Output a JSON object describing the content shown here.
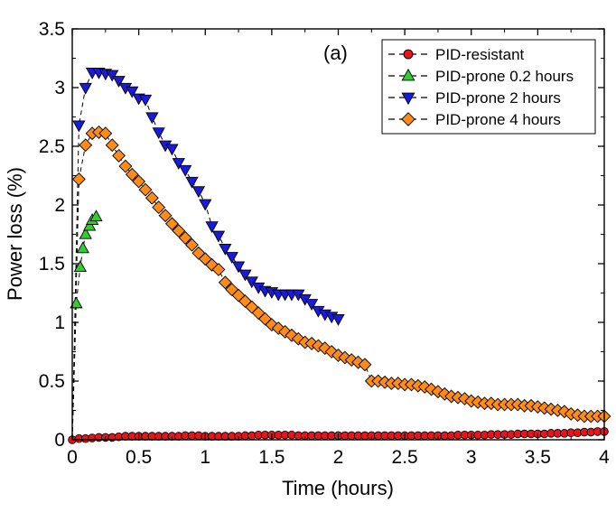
{
  "chart_data": {
    "type": "scatter",
    "panel_label": "(a)",
    "xlabel": "Time (hours)",
    "ylabel": "Power loss (%)",
    "xlim": [
      0,
      4
    ],
    "ylim": [
      0,
      3.5
    ],
    "xticks": [
      "0",
      "0.5",
      "1",
      "1.5",
      "2",
      "2.5",
      "3",
      "3.5",
      "4"
    ],
    "yticks": [
      "0",
      "0.5",
      "1",
      "1.5",
      "2",
      "2.5",
      "3",
      "3.5"
    ],
    "grid": false,
    "legend_position": "top-right",
    "series": [
      {
        "name": "PID-resistant",
        "marker": "circle",
        "color": "#e8141c",
        "x": [
          0,
          0.05,
          0.1,
          0.15,
          0.2,
          0.25,
          0.3,
          0.35,
          0.4,
          0.45,
          0.5,
          0.55,
          0.6,
          0.65,
          0.7,
          0.75,
          0.8,
          0.85,
          0.9,
          0.95,
          1.0,
          1.05,
          1.1,
          1.15,
          1.2,
          1.25,
          1.3,
          1.35,
          1.4,
          1.45,
          1.5,
          1.55,
          1.6,
          1.65,
          1.7,
          1.75,
          1.8,
          1.85,
          1.9,
          1.95,
          2.0,
          2.05,
          2.1,
          2.15,
          2.2,
          2.25,
          2.3,
          2.35,
          2.4,
          2.45,
          2.5,
          2.55,
          2.6,
          2.65,
          2.7,
          2.75,
          2.8,
          2.85,
          2.9,
          2.95,
          3.0,
          3.05,
          3.1,
          3.15,
          3.2,
          3.25,
          3.3,
          3.35,
          3.4,
          3.45,
          3.5,
          3.55,
          3.6,
          3.65,
          3.7,
          3.75,
          3.8,
          3.85,
          3.9,
          3.95,
          4.0
        ],
        "y": [
          0,
          0.01,
          0.01,
          0.015,
          0.02,
          0.02,
          0.02,
          0.025,
          0.03,
          0.03,
          0.03,
          0.03,
          0.03,
          0.03,
          0.03,
          0.03,
          0.03,
          0.035,
          0.035,
          0.035,
          0.03,
          0.03,
          0.03,
          0.03,
          0.03,
          0.03,
          0.035,
          0.035,
          0.04,
          0.04,
          0.04,
          0.04,
          0.04,
          0.04,
          0.035,
          0.035,
          0.035,
          0.035,
          0.035,
          0.035,
          0.035,
          0.035,
          0.035,
          0.035,
          0.035,
          0.035,
          0.035,
          0.035,
          0.035,
          0.035,
          0.035,
          0.035,
          0.035,
          0.035,
          0.035,
          0.035,
          0.035,
          0.035,
          0.04,
          0.04,
          0.04,
          0.04,
          0.04,
          0.045,
          0.045,
          0.045,
          0.045,
          0.05,
          0.05,
          0.05,
          0.05,
          0.05,
          0.055,
          0.055,
          0.055,
          0.06,
          0.06,
          0.065,
          0.065,
          0.07,
          0.07
        ]
      },
      {
        "name": "PID-prone 0.2 hours",
        "marker": "triangle-up",
        "color": "#33cc33",
        "x": [
          0.03,
          0.06,
          0.08,
          0.1,
          0.13,
          0.15,
          0.18
        ],
        "y": [
          1.16,
          1.47,
          1.63,
          1.75,
          1.82,
          1.87,
          1.9
        ]
      },
      {
        "name": "PID-prone 2 hours",
        "marker": "triangle-down",
        "color": "#1a1adb",
        "x": [
          0.05,
          0.1,
          0.15,
          0.2,
          0.25,
          0.3,
          0.35,
          0.4,
          0.45,
          0.5,
          0.55,
          0.6,
          0.65,
          0.7,
          0.75,
          0.8,
          0.85,
          0.9,
          0.95,
          1.0,
          1.05,
          1.1,
          1.15,
          1.2,
          1.25,
          1.3,
          1.35,
          1.4,
          1.45,
          1.5,
          1.55,
          1.6,
          1.65,
          1.7,
          1.75,
          1.8,
          1.85,
          1.9,
          1.95,
          2.0
        ],
        "y": [
          2.68,
          3.0,
          3.13,
          3.13,
          3.12,
          3.11,
          3.06,
          3.0,
          2.97,
          2.91,
          2.9,
          2.75,
          2.62,
          2.51,
          2.48,
          2.36,
          2.3,
          2.2,
          2.12,
          2.01,
          1.82,
          1.74,
          1.63,
          1.56,
          1.48,
          1.41,
          1.35,
          1.3,
          1.27,
          1.26,
          1.24,
          1.24,
          1.24,
          1.24,
          1.2,
          1.16,
          1.1,
          1.07,
          1.05,
          1.03
        ]
      },
      {
        "name": "PID-prone 4 hours",
        "marker": "diamond",
        "color": "#ff8c1a",
        "x": [
          0.05,
          0.1,
          0.15,
          0.2,
          0.25,
          0.3,
          0.35,
          0.4,
          0.45,
          0.5,
          0.55,
          0.6,
          0.65,
          0.7,
          0.75,
          0.8,
          0.85,
          0.9,
          0.95,
          1.0,
          1.05,
          1.1,
          1.15,
          1.2,
          1.25,
          1.3,
          1.35,
          1.4,
          1.45,
          1.5,
          1.55,
          1.6,
          1.65,
          1.7,
          1.75,
          1.8,
          1.85,
          1.9,
          1.95,
          2.0,
          2.05,
          2.1,
          2.15,
          2.2,
          2.25,
          2.3,
          2.35,
          2.4,
          2.45,
          2.5,
          2.55,
          2.6,
          2.65,
          2.7,
          2.75,
          2.8,
          2.85,
          2.9,
          2.95,
          3.0,
          3.05,
          3.1,
          3.15,
          3.2,
          3.25,
          3.3,
          3.35,
          3.4,
          3.45,
          3.5,
          3.55,
          3.6,
          3.65,
          3.7,
          3.75,
          3.8,
          3.85,
          3.9,
          3.95,
          4.0
        ],
        "y": [
          2.22,
          2.51,
          2.61,
          2.62,
          2.61,
          2.51,
          2.42,
          2.33,
          2.26,
          2.2,
          2.13,
          2.06,
          1.98,
          1.91,
          1.84,
          1.78,
          1.72,
          1.66,
          1.59,
          1.54,
          1.49,
          1.45,
          1.34,
          1.28,
          1.23,
          1.18,
          1.13,
          1.08,
          1.03,
          0.98,
          0.95,
          0.92,
          0.89,
          0.86,
          0.83,
          0.82,
          0.8,
          0.78,
          0.75,
          0.72,
          0.7,
          0.68,
          0.66,
          0.64,
          0.5,
          0.5,
          0.49,
          0.48,
          0.48,
          0.47,
          0.47,
          0.46,
          0.45,
          0.43,
          0.41,
          0.39,
          0.37,
          0.36,
          0.35,
          0.33,
          0.32,
          0.31,
          0.31,
          0.3,
          0.3,
          0.3,
          0.3,
          0.29,
          0.29,
          0.28,
          0.27,
          0.26,
          0.25,
          0.24,
          0.22,
          0.21,
          0.2,
          0.2,
          0.2,
          0.2
        ]
      }
    ]
  }
}
